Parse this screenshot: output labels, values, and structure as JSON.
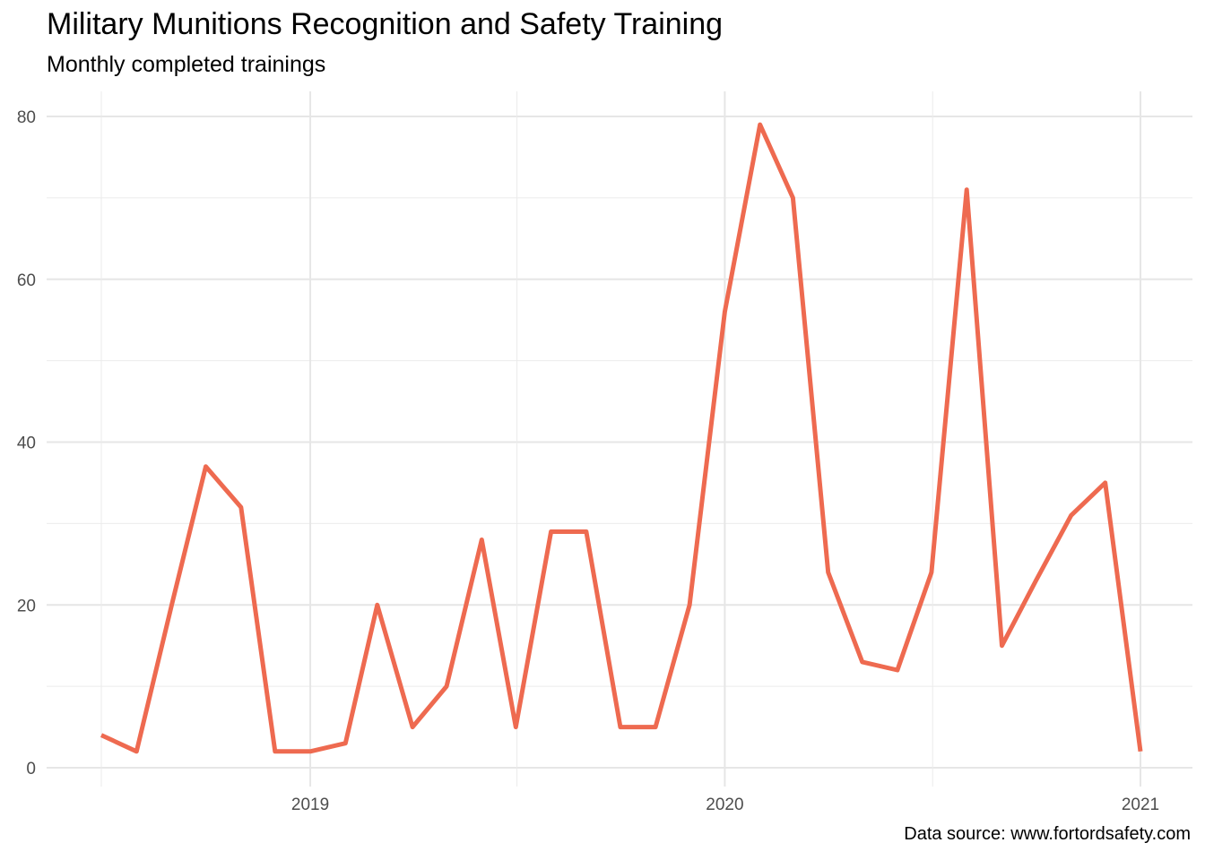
{
  "chart_data": {
    "type": "line",
    "title": "Military Munitions Recognition and Safety Training",
    "subtitle": "Monthly completed trainings",
    "caption": "Data source: www.fortordsafety.com",
    "xlabel": "",
    "ylabel": "",
    "x_axis": {
      "type": "date",
      "range": [
        "2018-06-01",
        "2021-01-01"
      ],
      "ticks": [
        "2019-01-01",
        "2020-01-01",
        "2021-01-01"
      ],
      "tick_labels": [
        "2019",
        "2020",
        "2021"
      ]
    },
    "y_axis": {
      "range": [
        0,
        80
      ],
      "ticks": [
        0,
        20,
        40,
        60,
        80
      ],
      "tick_labels": [
        "0",
        "20",
        "40",
        "60",
        "80"
      ]
    },
    "grid": true,
    "line_color": "#EE6A50",
    "series": [
      {
        "x": [
          "2018-07-01",
          "2018-08-01",
          "2018-09-01",
          "2018-10-01",
          "2018-11-01",
          "2018-12-01",
          "2019-01-01",
          "2019-02-01",
          "2019-03-01",
          "2019-04-01",
          "2019-05-01",
          "2019-06-01",
          "2019-07-01",
          "2019-08-01",
          "2019-09-01",
          "2019-10-01",
          "2019-11-01",
          "2019-12-01",
          "2020-01-01",
          "2020-02-01",
          "2020-03-01",
          "2020-04-01",
          "2020-05-01",
          "2020-06-01",
          "2020-07-01",
          "2020-08-01",
          "2020-09-01",
          "2020-10-01",
          "2020-11-01",
          "2020-12-01",
          "2021-01-01"
        ],
        "values": [
          4,
          2,
          20,
          37,
          32,
          2,
          2,
          3,
          20,
          5,
          10,
          28,
          5,
          29,
          29,
          5,
          5,
          20,
          56,
          79,
          70,
          24,
          13,
          12,
          24,
          71,
          15,
          23,
          31,
          35,
          2
        ]
      }
    ]
  }
}
